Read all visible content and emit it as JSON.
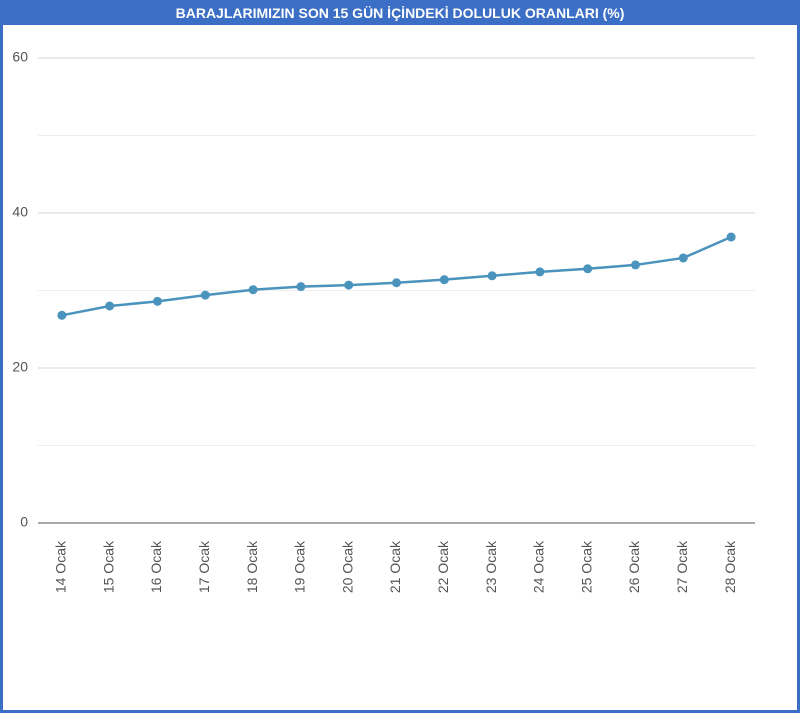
{
  "chart_data": {
    "type": "line",
    "title": "BARAJLARIMIZIN SON 15 GÜN İÇİNDEKİ DOLULUK ORANLARI (%)",
    "categories": [
      "14 Ocak",
      "15 Ocak",
      "16 Ocak",
      "17 Ocak",
      "18 Ocak",
      "19 Ocak",
      "20 Ocak",
      "21 Ocak",
      "22 Ocak",
      "23 Ocak",
      "24 Ocak",
      "25 Ocak",
      "26 Ocak",
      "27 Ocak",
      "28 Ocak"
    ],
    "values": [
      26.8,
      28.0,
      28.6,
      29.4,
      30.1,
      30.5,
      30.7,
      31.0,
      31.4,
      31.9,
      32.4,
      32.8,
      33.3,
      34.2,
      36.9
    ],
    "color": "#4a93bd",
    "ylim": [
      0,
      60
    ],
    "yticks": [
      0,
      20,
      40,
      60
    ],
    "minor_yticks": [
      10,
      30,
      50
    ],
    "grid": true
  }
}
